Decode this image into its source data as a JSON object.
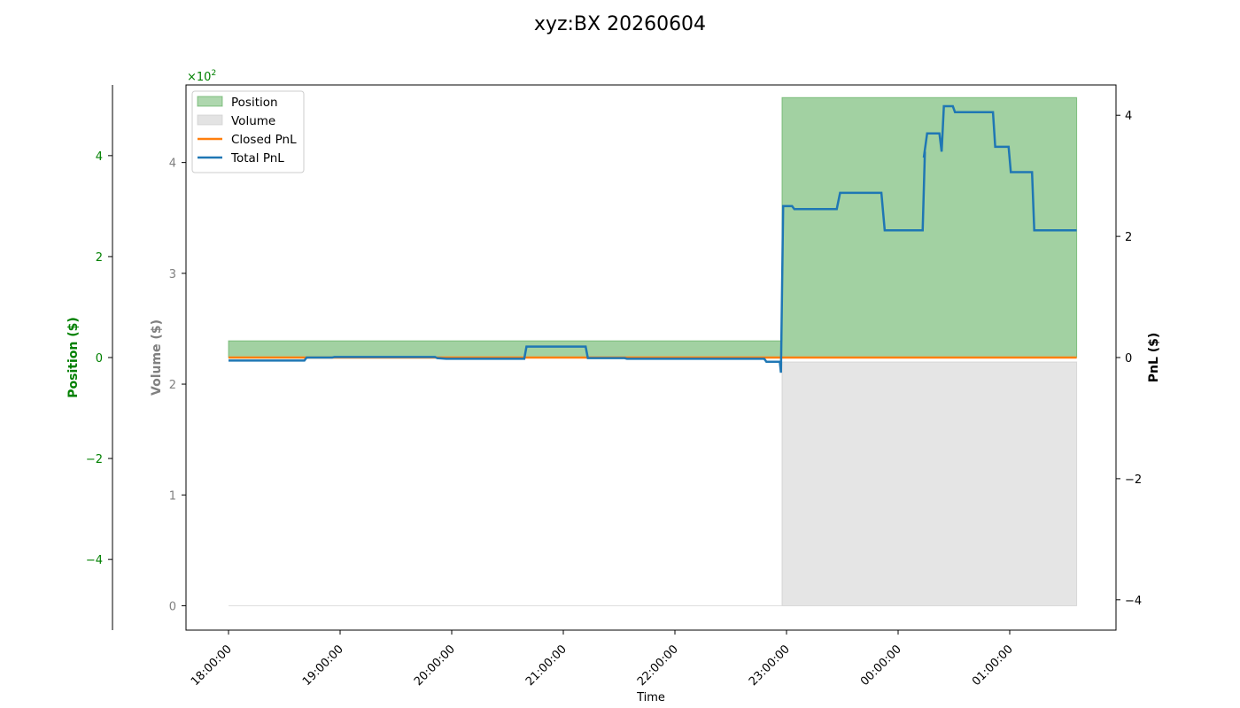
{
  "chart_data": {
    "type": "line",
    "title": "xyz:BX 20260604",
    "xlabel": "Time",
    "x_ticks": [
      "18:00:00",
      "19:00:00",
      "20:00:00",
      "21:00:00",
      "22:00:00",
      "23:00:00",
      "00:00:00",
      "01:00:00"
    ],
    "axes": {
      "position": {
        "label": "Position ($)",
        "ylim": [
          -5.4,
          5.4
        ],
        "ticks": [
          -4,
          -2,
          0,
          2,
          4
        ],
        "tick_labels": [
          "−4",
          "−2",
          "0",
          "2",
          "4"
        ],
        "scale_label": "×10",
        "scale_exponent": "2",
        "color": "#008000"
      },
      "volume": {
        "label": "Volume ($)",
        "ylim": [
          -0.22,
          4.7
        ],
        "ticks": [
          0,
          1,
          2,
          3,
          4
        ],
        "tick_labels": [
          "0",
          "1",
          "2",
          "3",
          "4"
        ],
        "color": "#808080"
      },
      "pnl": {
        "label": "PnL ($)",
        "ylim": [
          -4.5,
          4.5
        ],
        "ticks": [
          -4,
          -2,
          0,
          2,
          4
        ],
        "tick_labels": [
          "−4",
          "−2",
          "0",
          "2",
          "4"
        ],
        "color": "#000000"
      }
    },
    "legend": {
      "placement": "upper left",
      "entries": [
        {
          "label": "Position",
          "kind": "fill",
          "color": "#4CA64C"
        },
        {
          "label": "Volume",
          "kind": "fill",
          "color": "#C8C8C8"
        },
        {
          "label": "Closed PnL",
          "kind": "line",
          "color": "#ff7f0e"
        },
        {
          "label": "Total PnL",
          "kind": "line",
          "color": "#1f77b4"
        }
      ]
    },
    "series": [
      {
        "name": "Position",
        "axis": "position",
        "step": true,
        "color": "#4CA64C",
        "points": [
          [
            0,
            0.33
          ],
          [
            4.95,
            0.33
          ],
          [
            4.96,
            5.15
          ],
          [
            7.6,
            5.15
          ]
        ]
      },
      {
        "name": "Volume",
        "axis": "volume",
        "step": true,
        "color": "#C8C8C8",
        "points": [
          [
            0,
            0.0
          ],
          [
            4.95,
            0.0
          ],
          [
            4.96,
            2.2
          ],
          [
            7.6,
            2.2
          ]
        ]
      },
      {
        "name": "Closed PnL",
        "axis": "pnl",
        "step": false,
        "color": "#ff7f0e",
        "points": [
          [
            0,
            0
          ],
          [
            7.6,
            0
          ]
        ]
      },
      {
        "name": "Total PnL",
        "axis": "pnl",
        "step": false,
        "color": "#1f77b4",
        "points": [
          [
            0,
            -0.05
          ],
          [
            0.68,
            -0.05
          ],
          [
            0.7,
            0.0
          ],
          [
            0.93,
            0.0
          ],
          [
            0.95,
            0.01
          ],
          [
            1.85,
            0.01
          ],
          [
            1.87,
            -0.01
          ],
          [
            1.95,
            -0.02
          ],
          [
            2.65,
            -0.02
          ],
          [
            2.67,
            0.18
          ],
          [
            3.2,
            0.18
          ],
          [
            3.22,
            -0.01
          ],
          [
            3.55,
            -0.01
          ],
          [
            3.57,
            -0.02
          ],
          [
            4.8,
            -0.02
          ],
          [
            4.82,
            -0.07
          ],
          [
            4.94,
            -0.07
          ],
          [
            4.95,
            -0.25
          ],
          [
            4.97,
            2.5
          ],
          [
            5.05,
            2.5
          ],
          [
            5.07,
            2.45
          ],
          [
            5.45,
            2.45
          ],
          [
            5.48,
            2.72
          ],
          [
            5.85,
            2.72
          ],
          [
            5.88,
            2.1
          ],
          [
            6.22,
            2.1
          ],
          [
            6.24,
            3.4
          ],
          [
            6.23,
            3.3
          ],
          [
            6.26,
            3.7
          ],
          [
            6.37,
            3.7
          ],
          [
            6.39,
            3.4
          ],
          [
            6.41,
            4.15
          ],
          [
            6.49,
            4.15
          ],
          [
            6.51,
            4.05
          ],
          [
            6.85,
            4.05
          ],
          [
            6.87,
            3.48
          ],
          [
            6.99,
            3.48
          ],
          [
            7.01,
            3.06
          ],
          [
            7.2,
            3.06
          ],
          [
            7.22,
            2.1
          ],
          [
            7.6,
            2.1
          ]
        ]
      }
    ]
  }
}
